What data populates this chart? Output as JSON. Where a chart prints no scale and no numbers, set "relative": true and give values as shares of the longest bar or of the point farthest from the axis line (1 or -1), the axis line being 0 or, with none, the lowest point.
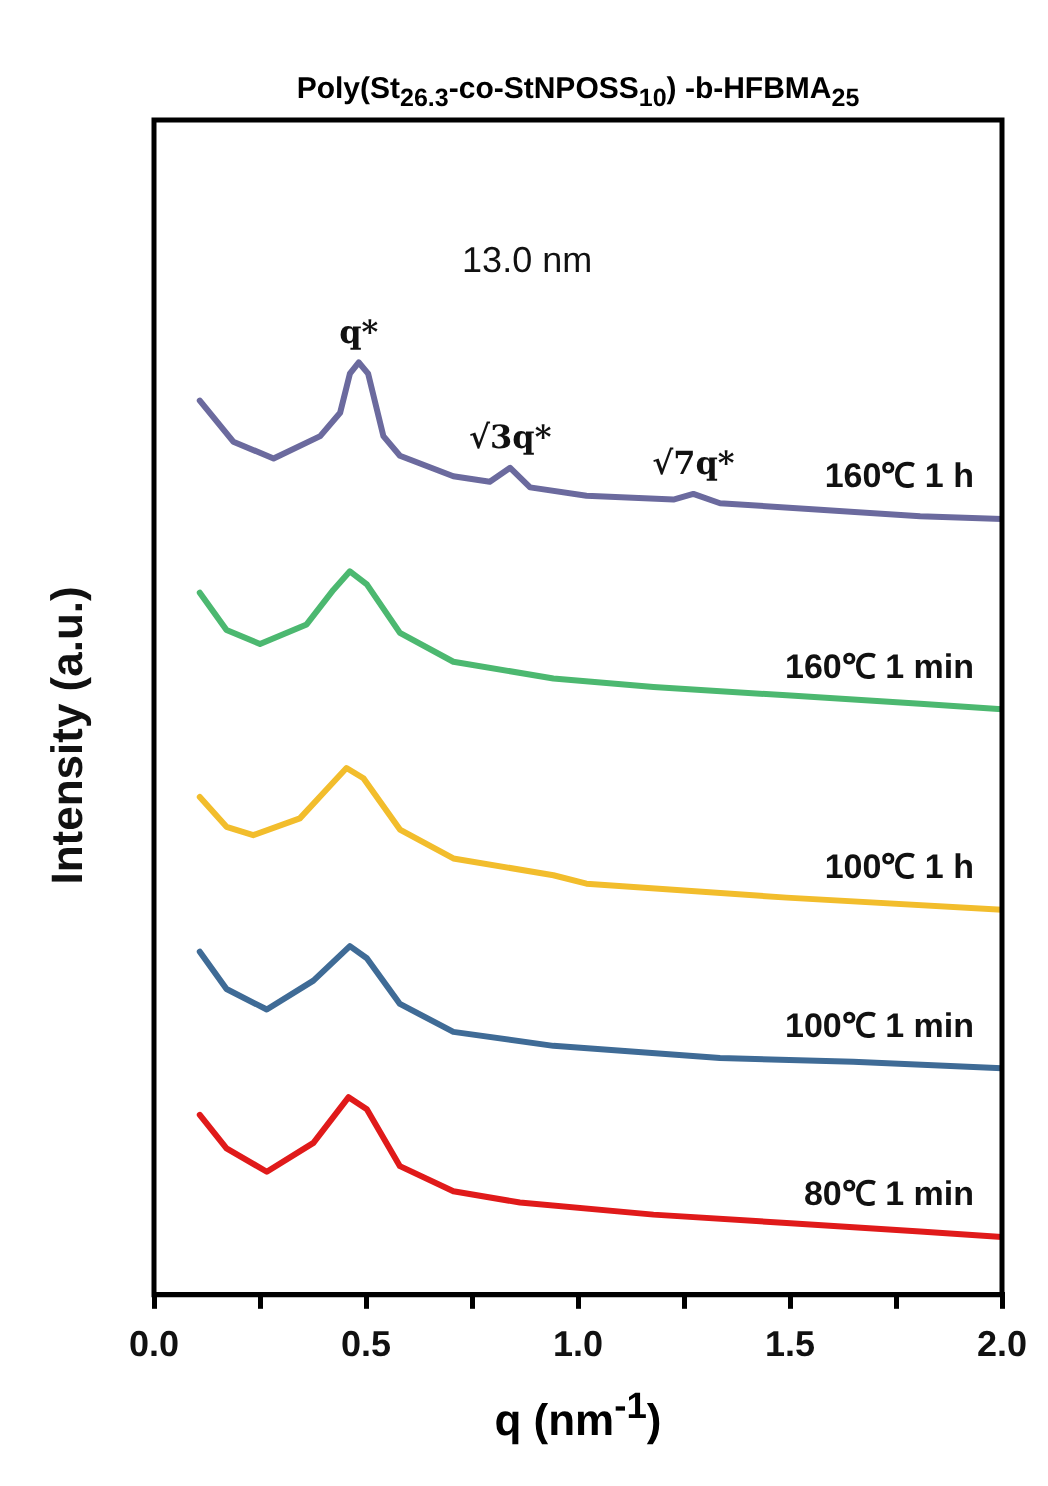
{
  "chart_data": {
    "type": "line",
    "relative": true,
    "title": "Poly(St$_{26.3}$-co-StNPOSS$_{10}$) -b-HFBMA$_{25}$",
    "xlabel": "q (nm$^{-1}$)",
    "ylabel": "Intensity (a.u.)",
    "xlim": [
      0,
      2
    ],
    "xticks": [
      {
        "value": 0,
        "label": "0.0"
      },
      {
        "value": 0.25,
        "label": null
      },
      {
        "value": 0.5,
        "label": "0.5"
      },
      {
        "value": 0.75,
        "label": null
      },
      {
        "value": 1,
        "label": "1.0"
      },
      {
        "value": 1.25,
        "label": null
      },
      {
        "value": 1.5,
        "label": "1.5"
      },
      {
        "value": 1.75,
        "label": null
      },
      {
        "value": 2,
        "label": "2.0"
      }
    ],
    "tick_labels": "x",
    "series": [
      {
        "name": "160℃ 1 h",
        "color": "#6b6a9e",
        "x": [
          0.108,
          0.187,
          0.282,
          0.392,
          0.439,
          0.462,
          0.483,
          0.505,
          0.541,
          0.58,
          0.706,
          0.792,
          0.84,
          0.887,
          1.02,
          1.225,
          1.272,
          1.335,
          1.571,
          1.807,
          2.0
        ],
        "values": [
          0.959,
          0.915,
          0.897,
          0.921,
          0.946,
          0.988,
          1.0,
          0.988,
          0.921,
          0.9,
          0.878,
          0.872,
          0.887,
          0.866,
          0.857,
          0.853,
          0.859,
          0.849,
          0.842,
          0.835,
          0.832
        ]
      },
      {
        "name": "160℃ 1 min",
        "color": "#4cb870",
        "x": [
          0.108,
          0.171,
          0.25,
          0.36,
          0.423,
          0.462,
          0.502,
          0.58,
          0.706,
          0.942,
          1.178,
          1.492,
          1.807,
          2.0
        ],
        "values": [
          0.753,
          0.713,
          0.698,
          0.719,
          0.756,
          0.776,
          0.762,
          0.71,
          0.679,
          0.661,
          0.652,
          0.643,
          0.634,
          0.628
        ]
      },
      {
        "name": "100℃ 1 h",
        "color": "#f2bd2c",
        "x": [
          0.108,
          0.171,
          0.234,
          0.344,
          0.407,
          0.454,
          0.494,
          0.58,
          0.706,
          0.942,
          1.02,
          1.492,
          2.0
        ],
        "values": [
          0.534,
          0.502,
          0.493,
          0.511,
          0.542,
          0.565,
          0.554,
          0.499,
          0.468,
          0.45,
          0.441,
          0.426,
          0.413
        ]
      },
      {
        "name": "100℃ 1 min",
        "color": "#3f6b96",
        "x": [
          0.108,
          0.171,
          0.266,
          0.376,
          0.462,
          0.502,
          0.58,
          0.706,
          0.942,
          1.335,
          1.649,
          2.0
        ],
        "values": [
          0.368,
          0.328,
          0.306,
          0.337,
          0.374,
          0.361,
          0.312,
          0.282,
          0.267,
          0.254,
          0.25,
          0.243
        ]
      },
      {
        "name": "80℃ 1 min",
        "color": "#e01a1a",
        "x": [
          0.108,
          0.171,
          0.266,
          0.376,
          0.459,
          0.502,
          0.58,
          0.706,
          0.863,
          1.178,
          1.492,
          1.807,
          2.0
        ],
        "values": [
          0.193,
          0.157,
          0.132,
          0.163,
          0.212,
          0.199,
          0.138,
          0.111,
          0.099,
          0.086,
          0.077,
          0.068,
          0.062
        ]
      }
    ],
    "annotations": [
      {
        "text": "q*",
        "x": 0.483,
        "y": 1.0
      },
      "13.0 nm",
      {
        "text": "√3q*",
        "x": 0.84,
        "y": 0.887
      },
      {
        "text": "√7q*",
        "x": 1.272,
        "y": 0.859
      }
    ]
  }
}
